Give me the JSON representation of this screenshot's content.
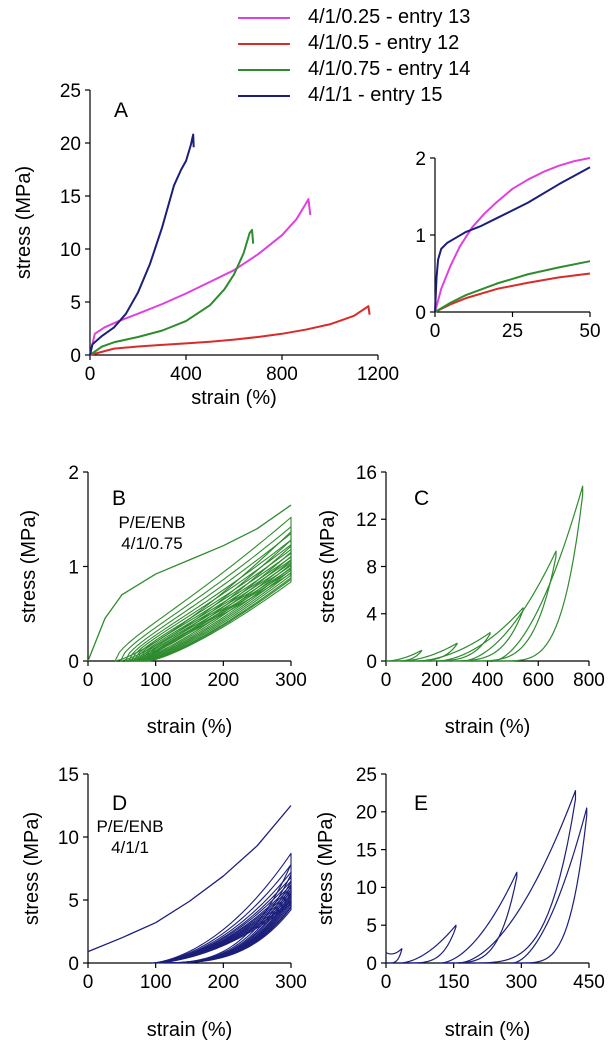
{
  "legend": [
    {
      "label": "4/1/0.25 - entry 13",
      "color": "#e040e0"
    },
    {
      "label": "4/1/0.5 - entry 12",
      "color": "#d92b2b"
    },
    {
      "label": "4/1/0.75 - entry 14",
      "color": "#2e8b2e"
    },
    {
      "label": "4/1/1 - entry 15",
      "color": "#1b1f7a"
    }
  ],
  "chart_data": [
    {
      "id": "A",
      "type": "line",
      "panel_label": "A",
      "xlabel": "strain (%)",
      "ylabel": "stress (MPa)",
      "xlim": [
        0,
        1200
      ],
      "ylim": [
        0,
        25
      ],
      "xticks": [
        "0",
        "400",
        "800",
        "1200"
      ],
      "xtick_values": [
        0,
        400,
        800,
        1200
      ],
      "yticks": [
        "0",
        "5",
        "10",
        "15",
        "20",
        "25"
      ],
      "ytick_values": [
        0,
        5,
        10,
        15,
        20,
        25
      ],
      "series": [
        {
          "name": "4/1/0.25 - entry 13",
          "color": "#e040e0",
          "x": [
            0,
            20,
            60,
            120,
            200,
            300,
            400,
            500,
            600,
            700,
            800,
            860,
            900,
            910,
            918
          ],
          "y": [
            0,
            2.0,
            2.6,
            3.2,
            3.9,
            4.8,
            5.8,
            6.9,
            8.0,
            9.5,
            11.3,
            12.8,
            14.3,
            14.7,
            13.2
          ]
        },
        {
          "name": "4/1/0.5 - entry 12",
          "color": "#d92b2b",
          "x": [
            0,
            100,
            200,
            300,
            400,
            500,
            600,
            700,
            800,
            900,
            1000,
            1100,
            1160,
            1165
          ],
          "y": [
            0,
            0.6,
            0.8,
            0.95,
            1.1,
            1.25,
            1.45,
            1.7,
            2.0,
            2.4,
            2.9,
            3.7,
            4.6,
            3.8
          ]
        },
        {
          "name": "4/1/0.75 - entry 14",
          "color": "#2e8b2e",
          "x": [
            0,
            50,
            100,
            200,
            300,
            400,
            500,
            560,
            600,
            640,
            665,
            675,
            680
          ],
          "y": [
            0,
            0.8,
            1.2,
            1.7,
            2.3,
            3.2,
            4.7,
            6.2,
            7.6,
            9.6,
            11.5,
            11.8,
            10.5
          ]
        },
        {
          "name": "4/1/1 - entry 15",
          "color": "#1b1f7a",
          "x": [
            0,
            10,
            50,
            100,
            150,
            200,
            250,
            300,
            350,
            380,
            400,
            420,
            430,
            432
          ],
          "y": [
            0,
            1.0,
            1.8,
            2.6,
            3.9,
            5.9,
            8.6,
            12.0,
            16.0,
            17.5,
            18.3,
            19.8,
            20.8,
            19.6
          ]
        }
      ]
    },
    {
      "id": "A_inset",
      "type": "line",
      "xlim": [
        0,
        50
      ],
      "ylim": [
        0,
        2
      ],
      "xticks": [
        "0",
        "25",
        "50"
      ],
      "xtick_values": [
        0,
        25,
        50
      ],
      "yticks": [
        "0",
        "1",
        "2"
      ],
      "ytick_values": [
        0,
        1,
        2
      ],
      "series": [
        {
          "name": "4/1/0.25 - entry 13",
          "color": "#e040e0",
          "x": [
            0,
            2,
            5,
            8,
            12,
            16,
            20,
            25,
            30,
            35,
            40,
            45,
            50
          ],
          "y": [
            0,
            0.3,
            0.6,
            0.85,
            1.1,
            1.28,
            1.43,
            1.6,
            1.72,
            1.82,
            1.9,
            1.96,
            2.0
          ]
        },
        {
          "name": "4/1/0.5 - entry 12",
          "color": "#d92b2b",
          "x": [
            0,
            5,
            10,
            20,
            30,
            40,
            50
          ],
          "y": [
            0,
            0.1,
            0.18,
            0.3,
            0.38,
            0.45,
            0.5
          ]
        },
        {
          "name": "4/1/0.75 - entry 14",
          "color": "#2e8b2e",
          "x": [
            0,
            5,
            10,
            20,
            30,
            40,
            50
          ],
          "y": [
            0,
            0.12,
            0.22,
            0.37,
            0.49,
            0.58,
            0.66
          ]
        },
        {
          "name": "4/1/1 - entry 15",
          "color": "#1b1f7a",
          "x": [
            0,
            0.5,
            1,
            2,
            4,
            7,
            10,
            15,
            20,
            30,
            40,
            50
          ],
          "y": [
            0,
            0.45,
            0.68,
            0.82,
            0.9,
            0.97,
            1.04,
            1.12,
            1.22,
            1.42,
            1.66,
            1.88
          ]
        }
      ]
    },
    {
      "id": "B",
      "type": "line",
      "panel_label": "B",
      "annotation": [
        "P/E/ENB",
        "4/1/0.75"
      ],
      "xlabel": "strain (%)",
      "ylabel": "stress (MPa)",
      "xlim": [
        0,
        300
      ],
      "ylim": [
        0,
        2
      ],
      "xticks": [
        "0",
        "100",
        "200",
        "300"
      ],
      "xtick_values": [
        0,
        100,
        200,
        300
      ],
      "yticks": [
        "0",
        "1",
        "2"
      ],
      "ytick_values": [
        0,
        1,
        2
      ],
      "color": "#2e8b2e",
      "first_loading": {
        "x": [
          0,
          25,
          50,
          100,
          150,
          200,
          250,
          300
        ],
        "y": [
          0,
          0.45,
          0.7,
          0.92,
          1.07,
          1.22,
          1.4,
          1.65
        ]
      },
      "cycle_peaks": [
        1.52,
        1.42,
        1.35,
        1.28,
        1.23,
        1.18,
        1.14,
        1.1,
        1.07,
        1.04,
        1.01,
        0.98,
        0.96,
        0.93
      ],
      "cycle_offsets": [
        40,
        48,
        55,
        60,
        64,
        68,
        71,
        74,
        77,
        80,
        83,
        86,
        88,
        90
      ]
    },
    {
      "id": "C",
      "type": "line",
      "panel_label": "C",
      "xlabel": "strain (%)",
      "ylabel": "stress (MPa)",
      "xlim": [
        0,
        800
      ],
      "ylim": [
        0,
        16
      ],
      "xticks": [
        "0",
        "200",
        "400",
        "600",
        "800"
      ],
      "xtick_values": [
        0,
        200,
        400,
        600,
        800
      ],
      "yticks": [
        "0",
        "4",
        "8",
        "12",
        "16"
      ],
      "ytick_values": [
        0,
        4,
        8,
        12,
        16
      ],
      "color": "#2e8b2e",
      "cycles": [
        {
          "max": 140,
          "peak": 0.9,
          "start": 0
        },
        {
          "max": 280,
          "peak": 1.5,
          "start": 60
        },
        {
          "max": 410,
          "peak": 2.4,
          "start": 120
        },
        {
          "max": 540,
          "peak": 4.5,
          "start": 200
        },
        {
          "max": 670,
          "peak": 9.3,
          "start": 300
        },
        {
          "max": 775,
          "peak": 14.8,
          "start": 420
        }
      ]
    },
    {
      "id": "D",
      "type": "line",
      "panel_label": "D",
      "annotation": [
        "P/E/ENB",
        "4/1/1"
      ],
      "xlabel": "strain (%)",
      "ylabel": "stress (MPa)",
      "xlim": [
        0,
        300
      ],
      "ylim": [
        0,
        15
      ],
      "xticks": [
        "0",
        "100",
        "200",
        "300"
      ],
      "xtick_values": [
        0,
        100,
        200,
        300
      ],
      "yticks": [
        "0",
        "5",
        "10",
        "15"
      ],
      "ytick_values": [
        0,
        5,
        10,
        15
      ],
      "color": "#1b1f7a",
      "first_loading": {
        "x": [
          0,
          50,
          100,
          150,
          200,
          250,
          300
        ],
        "y": [
          0.9,
          2.0,
          3.2,
          4.9,
          6.9,
          9.3,
          12.5
        ]
      },
      "cycle_peaks": [
        8.7,
        7.8,
        7.2,
        6.8,
        6.5,
        6.2,
        6.0,
        5.8,
        5.6,
        5.4,
        5.2,
        5.0,
        4.9,
        4.7
      ],
      "cycle_offsets": [
        95,
        96,
        97,
        98,
        98,
        99,
        99,
        100,
        100,
        100,
        100,
        100,
        100,
        100
      ]
    },
    {
      "id": "E",
      "type": "line",
      "panel_label": "E",
      "xlabel": "strain (%)",
      "ylabel": "stress (MPa)",
      "xlim": [
        0,
        450
      ],
      "ylim": [
        0,
        25
      ],
      "xticks": [
        "0",
        "150",
        "300",
        "450"
      ],
      "xtick_values": [
        0,
        150,
        300,
        450
      ],
      "yticks": [
        "0",
        "5",
        "10",
        "15",
        "20",
        "25"
      ],
      "ytick_values": [
        0,
        5,
        10,
        15,
        20,
        25
      ],
      "color": "#1b1f7a",
      "cycles": [
        {
          "max": 35,
          "peak": 1.9,
          "start": 0,
          "y0": 1.4
        },
        {
          "max": 155,
          "peak": 5.0,
          "start": 30
        },
        {
          "max": 290,
          "peak": 12.0,
          "start": 120
        },
        {
          "max": 420,
          "peak": 22.8,
          "start": 160
        },
        {
          "max": 445,
          "peak": 20.5,
          "start": 280
        }
      ]
    }
  ]
}
